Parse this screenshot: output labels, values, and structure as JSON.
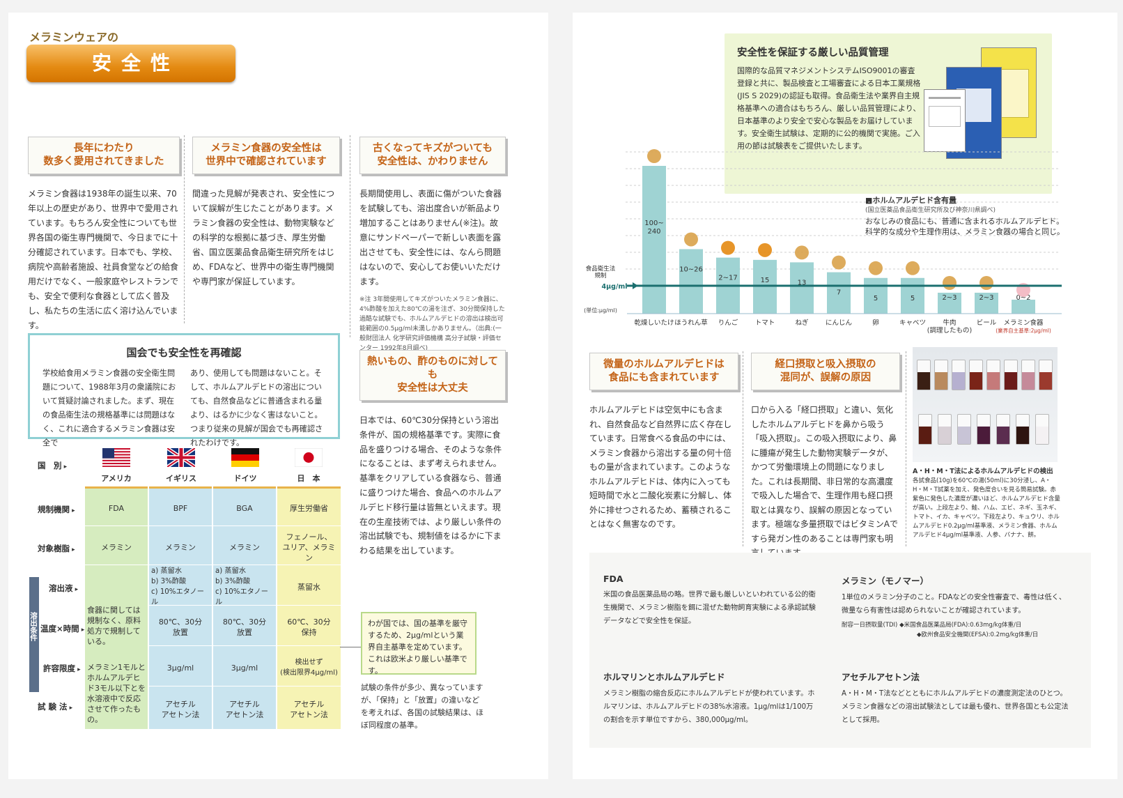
{
  "left": {
    "eyebrow": "メラミンウェアの",
    "title": "安全性",
    "sections": [
      {
        "heading": [
          "長年にわたり",
          "数多く愛用されてきました"
        ],
        "body": "メラミン食器は1938年の誕生以来、70年以上の歴史があり、世界中で愛用されています。もちろん安全性についても世界各国の衛生専門機関で、今日までに十分確認されています。日本でも、学校、病院や高齢者施設、社員食堂などの給食用だけでなく、一般家庭やレストランでも、安全で便利な食器として広く普及し、私たちの生活に広く溶け込んでいます。"
      },
      {
        "heading": [
          "メラミン食器の安全性は",
          "世界中で確認されています"
        ],
        "body": "間違った見解が発表され、安全性について誤解が生じたことがあります。メラミン食器の安全性は、動物実験などの科学的な根拠に基づき、厚生労働省、国立医薬品食品衛生研究所をはじめ、FDAなど、世界中の衛生専門機関や専門家が保証しています。"
      },
      {
        "heading": [
          "古くなってキズがついても",
          "安全性は、かわりません"
        ],
        "body": "長期間使用し、表面に傷がついた食器を試験しても、溶出度合いが新品より増加することはありません(※注)。故意にサンドペーパーで新しい表面を露出させても、安全性には、なんら問題はないので、安心してお使いいただけます。",
        "note": "※注 3年間使用してキズがついたメラミン食器に、4%酢酸を加えた80℃の湯を注ぎ、30分間保持した過酷な試験でも、ホルムアルデヒドの溶出は検出可能範囲の0.5μg/ml未満しかありません。（出典:(一般財団法人 化学研究評価機構 高分子試験・評価センター 1992年8月調べ)"
      },
      {
        "heading": [
          "熱いもの、酢のものに対しても",
          "安全性は大丈夫"
        ],
        "body": "日本では、60℃30分保持という溶出条件が、国の規格基準です。実際に食品を盛りつける場合、そのような条件になることは、まず考えられません。基準をクリアしている食器なら、普通に盛りつけた場合、食品へのホルムアルデヒド移行量は皆無といえます。現在の生産技術では、より厳しい条件の溶出試験でも、規制値をはるかに下まわる結果を出しています。"
      }
    ],
    "diet": {
      "title": "国会でも安全性を再確認",
      "col1": "学校給食用メラミン食器の安全衛生問題について、1988年3月の衆議院において質疑討論されました。まず、現在の食品衛生法の規格基準には問題はなく、これに適合するメラミン食器は安全で",
      "col2": "あり、使用しても問題はないこと。そして、ホルムアルデヒドの溶出についても、自然食品などに普通含まれる量より、はるかに少なく害はないこと。つまり従来の見解が国会でも再確認されたわけです。"
    },
    "table": {
      "row_labels": [
        "国　別",
        "規制機関",
        "対象樹脂",
        "溶出液",
        "温度×時間",
        "許容限度",
        "試 験 法"
      ],
      "side_label": "溶出条件",
      "countries": [
        "アメリカ",
        "イギリス",
        "ドイツ",
        "日　本"
      ],
      "agencies": [
        "FDA",
        "BPF",
        "BGA",
        "厚生労働省"
      ],
      "resins": [
        "メラミン",
        "メラミン",
        "メラミン",
        "フェノール、\nユリア、メラミン"
      ],
      "us_conditions": "食器に関しては規制なく、原料処方で規制している。",
      "us_limit": "メラミン1モルとホルムアルデヒド3モル以下とを水溶液中で反応させて作ったもの。",
      "liquid_uk": "a) 蒸留水\nb) 3%酢酸\nc) 10%エタノール",
      "liquid_de": "a) 蒸留水\nb) 3%酢酸\nc) 10%エタノール",
      "liquid_jp": "蒸留水",
      "temp_uk": "80℃、30分\n放置",
      "temp_de": "80℃、30分\n放置",
      "temp_jp": "60℃、30分\n保持",
      "limit_uk": "3μg/ml",
      "limit_de": "3μg/ml",
      "limit_jp": "検出せず\n(検出限界4μg/ml)",
      "method": "アセチル\nアセトン法"
    },
    "callout": "わが国では、国の基準を厳守するため、2μg/mlという業界自主基準を定めています。これは欧米より厳しい基準です。",
    "callout_note": "試験の条件が多少、異なっていますが、「保持」と「放置」の違いなどを考えれば、各国の試験結果は、ほぼ同程度の基準。"
  },
  "right": {
    "qc": {
      "title": "安全性を保証する厳しい品質管理",
      "body": "国際的な品質マネジメントシステムISO9001の審査登録と共に、製品検査と工場審査による日本工業規格(JIS S 2029)の認証も取得。食品衛生法や業界自主規格基準への適合はもちろん、厳しい品質管理により、日本基準のより安全で安心な製品をお届けしています。安全衛生試験は、定期的に公的機関で実施。ご入用の節は試験表をご提供いたします。"
    },
    "legend": {
      "title": "■ホルムアルデヒド含有量",
      "source": "(国立医薬品食品衛生研究所及び神奈川県調べ)",
      "line1": "おなじみの食品にも、普通に含まれるホルムアルデヒド。",
      "line2": "科学的な成分や生理作用は、メラミン食器の場合と同じ。"
    },
    "threshold_label": "食品衛生法\n規制",
    "threshold_value": "4μg/ml",
    "unit": "(単位:μg/ml)",
    "bottom_sections": [
      {
        "heading": [
          "微量のホルムアルデヒドは",
          "食品にも含まれています"
        ],
        "body": "ホルムアルデヒドは空気中にも含まれ、自然食品など自然界に広く存在しています。日常食べる食品の中には、メラミン食器から溶出する量の何十倍もの量が含まれています。このようなホルムアルデヒドは、体内に入っても短時間で水と二酸化炭素に分解し、体外に排せつされるため、蓄積されることはなく無害なのです。"
      },
      {
        "heading": [
          "経口摂取と吸入摂取の",
          "混同が、誤解の原因"
        ],
        "body": "口から入る「経口摂取」と違い、気化したホルムアルデヒドを鼻から吸う「吸入摂取」。この吸入摂取により、鼻に腫瘍が発生した動物実験データが、かつて労働環境上の問題になりました。これは長期間、非日常的な高濃度で吸入した場合で、生理作用も経口摂取とは異なり、誤解の原因となっています。極端な多量摂取ではビタミンAですら発ガン性のあることは専門家も明言しています。"
      }
    ],
    "photo_caption_title": "A・H・M・T法によるホルムアルデヒドの検出",
    "photo_caption": "各試食品(10g)を60℃の湯(50ml)に30分浸し、A・H・M・T試薬を加え、発色度合いを見る簡易試験。赤紫色に発色した濃度が濃いほど、ホルムアルデヒド含量が高い。上段左より、鮭、ハム、エビ、ネギ、玉ネギ、トマト、イカ、キャベツ。下段左より、キュウリ、ホルムアルデヒド0.2μg/ml基準液、メラミン食器、ホルムアルデヒド4μg/ml基準液、人参、バナナ、餅。",
    "glossary": [
      {
        "term": "FDA",
        "text": "米国の食品医薬品局の略。世界で最も厳しいといわれている公的衛生機関で、メラミン樹脂を餌に混ぜた動物飼育実験による承認試験データなどで安全性を保証。"
      },
      {
        "term": "メラミン（モノマー）",
        "text": "1単位のメラミン分子のこと。FDAなどの安全性審査で、毒性は低く、微量なら有害性は認められないことが確認されています。",
        "note1": "耐容一日摂取量(TDI) ◆米国食品医薬品局(FDA):0.63mg/kg体重/日",
        "note2": "◆欧州食品安全機関(EFSA):0.2mg/kg体重/日"
      },
      {
        "term": "ホルマリンとホルムアルデヒド",
        "text": "メラミン樹脂の縮合反応にホルムアルデヒドが使われています。ホルマリンは、ホルムアルデヒドの38%水溶液。1μg/mlは1/100万の割合を示す単位ですから、380,000μg/ml。"
      },
      {
        "term": "アセチルアセトン法",
        "text": "A・H・M・T法などとともにホルムアルデヒドの濃度測定法のひとつ。メラミン食器などの溶出試験法としては最も優れ、世界各国とも公定法として採用。"
      }
    ]
  },
  "chart_data": {
    "type": "bar",
    "title": "■ホルムアルデヒド含有量",
    "ylabel": "(単位:μg/ml)",
    "categories": [
      "乾燥しいたけ",
      "ほうれん草",
      "りんご",
      "トマト",
      "ねぎ",
      "にんじん",
      "卵",
      "キャベツ",
      "牛肉\n(調理したもの)",
      "ビール",
      "メラミン食器"
    ],
    "category_notes": [
      "",
      "",
      "",
      "",
      "",
      "",
      "",
      "",
      "",
      "",
      "(業界自主基準:2μg/ml)"
    ],
    "value_labels": [
      "100~\n240",
      "10~26",
      "2~17",
      "15",
      "13",
      "7",
      "5",
      "5",
      "2~3",
      "2~3",
      "0~2"
    ],
    "values": [
      240,
      26,
      17,
      15,
      13,
      7,
      5,
      5,
      3,
      3,
      2
    ],
    "threshold": 4,
    "threshold_label": "食品衛生法\n規制",
    "threshold_value_label": "4μg/ml",
    "bar_color": "#9fd3d3",
    "threshold_color": "#1b6f6f"
  }
}
